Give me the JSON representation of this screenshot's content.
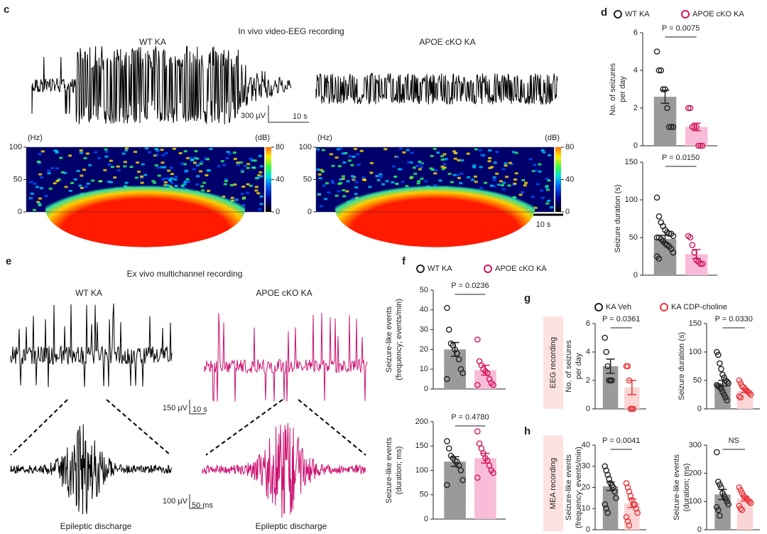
{
  "panel_c": {
    "letter": "c",
    "title": "In vivo video-EEG recording",
    "left_label": "WT KA",
    "right_label": "APOE cKO KA",
    "scale_v": "300 µV",
    "scale_t": "10 s",
    "spec_scale_t": "10 s"
  },
  "panel_d": {
    "letter": "d"
  },
  "panel_e": {
    "letter": "e",
    "title": "Ex vivo multichannel recording",
    "left_label": "WT KA",
    "right_label": "APOE cKO KA",
    "scale_v": "150 µV",
    "scale_t": "10 s",
    "zoom_scale_v": "100 µV",
    "zoom_scale_t": "50 ms",
    "left_caption": "Epileptic discharge",
    "right_caption": "Epileptic discharge"
  },
  "panel_f": {
    "letter": "f"
  },
  "panel_g": {
    "letter": "g",
    "row_label": "EEG recording"
  },
  "panel_h": {
    "letter": "h",
    "row_label": "MEA recording"
  },
  "chart_data": [
    {
      "type": "heatmap",
      "ylabel": "(Hz)",
      "colorbar_label": "(dB)",
      "ylim": [
        0,
        100
      ],
      "yticks": [
        0,
        50,
        100
      ],
      "clim": [
        0,
        80
      ],
      "cticks": [
        0,
        40,
        80
      ]
    },
    {
      "type": "heatmap",
      "ylabel": "(Hz)",
      "colorbar_label": "(dB)",
      "ylim": [
        0,
        100
      ],
      "yticks": [
        0,
        50,
        100
      ],
      "clim": [
        0,
        80
      ],
      "cticks": [
        0,
        40,
        80
      ]
    },
    {
      "type": "bar",
      "ylabel": [
        "No. of seizures",
        "per day"
      ],
      "ylim": [
        0,
        6
      ],
      "yticks": [
        0,
        2,
        4,
        6
      ],
      "annotation": "P = 0.0075",
      "series": [
        {
          "name": "WT KA",
          "color": "#222222",
          "fill": "#9a9a9a",
          "value": 2.6,
          "error": 0.35,
          "points": [
            5,
            4,
            4,
            3,
            3,
            2,
            1,
            1,
            1
          ]
        },
        {
          "name": "APOE cKO KA",
          "color": "#d4145a",
          "fill": "#f8bcd8",
          "value": 1.0,
          "error": 0.2,
          "points": [
            2,
            2,
            1,
            1,
            1,
            0,
            0,
            0
          ]
        }
      ]
    },
    {
      "type": "bar",
      "ylabel": [
        "Seizure duration (s)"
      ],
      "ylim": [
        0,
        150
      ],
      "yticks": [
        0,
        50,
        100,
        150
      ],
      "annotation": "P = 0.0150",
      "series": [
        {
          "color": "#222222",
          "fill": "#9a9a9a",
          "value": 48,
          "error": 5,
          "points": [
            103,
            78,
            70,
            65,
            60,
            57,
            55,
            55,
            52,
            50,
            50,
            48,
            45,
            42,
            40,
            38,
            35,
            30,
            25,
            22
          ]
        },
        {
          "color": "#d4145a",
          "fill": "#f8bcd8",
          "value": 28,
          "error": 6,
          "points": [
            52,
            50,
            40,
            30,
            20,
            18,
            15,
            15
          ]
        }
      ]
    },
    {
      "type": "bar",
      "ylabel": [
        "Seizure-like events",
        "(frequency; events/min)"
      ],
      "ylim": [
        0,
        50
      ],
      "yticks": [
        0,
        10,
        20,
        30,
        40,
        50
      ],
      "annotation": "P = 0.0236",
      "series": [
        {
          "name": "WT KA",
          "color": "#222222",
          "fill": "#9a9a9a",
          "value": 20,
          "error": 3.5,
          "points": [
            41,
            30,
            23,
            22,
            20,
            18,
            15,
            10,
            8,
            5
          ]
        },
        {
          "name": "APOE cKO KA",
          "color": "#d4145a",
          "fill": "#f8bcd8",
          "value": 9.5,
          "error": 2.5,
          "points": [
            25,
            14,
            12,
            10,
            9,
            8,
            5,
            3,
            2,
            2
          ]
        }
      ]
    },
    {
      "type": "bar",
      "ylabel": [
        "Seizure-like events",
        "(duration; ms)"
      ],
      "ylim": [
        0,
        200
      ],
      "yticks": [
        0,
        50,
        100,
        150,
        200
      ],
      "annotation": "P = 0.4780",
      "series": [
        {
          "color": "#222222",
          "fill": "#9a9a9a",
          "value": 118,
          "error": 10,
          "points": [
            160,
            145,
            130,
            125,
            120,
            118,
            110,
            100,
            80,
            70
          ]
        },
        {
          "color": "#d4145a",
          "fill": "#f8bcd8",
          "value": 125,
          "error": 10,
          "points": [
            180,
            155,
            145,
            135,
            125,
            120,
            110,
            100,
            95,
            85
          ]
        }
      ]
    },
    {
      "type": "bar",
      "ylabel": [
        "No. of seizures",
        "per day"
      ],
      "ylim": [
        0,
        6
      ],
      "yticks": [
        0,
        2,
        4,
        6
      ],
      "annotation": "P = 0.0361",
      "series": [
        {
          "name": "KA Veh",
          "color": "#222222",
          "fill": "#9a9a9a",
          "value": 3,
          "error": 0.5,
          "points": [
            5,
            4,
            3,
            2,
            2,
            2
          ]
        },
        {
          "name": "KA CDP-choline",
          "color": "#e8353a",
          "fill": "#fbd5d5",
          "value": 1.5,
          "error": 0.5,
          "points": [
            3,
            3,
            2,
            0,
            0,
            0
          ]
        }
      ]
    },
    {
      "type": "bar",
      "ylabel": [
        "Seizure duration (s)"
      ],
      "ylim": [
        0,
        150
      ],
      "yticks": [
        0,
        50,
        100,
        150
      ],
      "annotation": "P = 0.0330",
      "series": [
        {
          "color": "#222222",
          "fill": "#9a9a9a",
          "value": 45,
          "error": 5,
          "points": [
            100,
            95,
            80,
            70,
            60,
            55,
            50,
            48,
            45,
            42,
            40,
            38,
            35,
            30,
            25,
            20,
            15
          ]
        },
        {
          "color": "#e8353a",
          "fill": "#fbd5d5",
          "value": 32,
          "error": 3,
          "points": [
            50,
            45,
            40,
            38,
            35,
            32,
            30,
            28,
            25,
            22,
            20
          ]
        }
      ]
    },
    {
      "type": "bar",
      "ylabel": [
        "Seizure-like events",
        "(frequency; events/min)"
      ],
      "ylim": [
        0,
        40
      ],
      "yticks": [
        0,
        10,
        20,
        30,
        40
      ],
      "annotation": "P = 0.0041",
      "series": [
        {
          "color": "#222222",
          "fill": "#9a9a9a",
          "value": 20.5,
          "error": 2,
          "points": [
            30,
            28,
            26,
            24,
            22,
            21,
            20,
            18,
            15,
            12,
            10,
            8
          ]
        },
        {
          "color": "#e8353a",
          "fill": "#fbd5d5",
          "value": 12.5,
          "error": 2,
          "points": [
            22,
            20,
            18,
            16,
            14,
            12,
            12,
            10,
            8,
            6,
            4,
            2
          ]
        }
      ]
    },
    {
      "type": "bar",
      "ylabel": [
        "Seizure-like events",
        "(duration; ms)"
      ],
      "ylim": [
        0,
        300
      ],
      "yticks": [
        0,
        100,
        200,
        300
      ],
      "annotation": "NS",
      "series": [
        {
          "color": "#222222",
          "fill": "#9a9a9a",
          "value": 125,
          "error": 18,
          "points": [
            275,
            170,
            160,
            150,
            130,
            120,
            110,
            100,
            90,
            80,
            70,
            50
          ]
        },
        {
          "color": "#e8353a",
          "fill": "#fbd5d5",
          "value": 110,
          "error": 8,
          "points": [
            150,
            140,
            130,
            120,
            115,
            110,
            105,
            100,
            95,
            85,
            75,
            70
          ]
        }
      ]
    }
  ]
}
